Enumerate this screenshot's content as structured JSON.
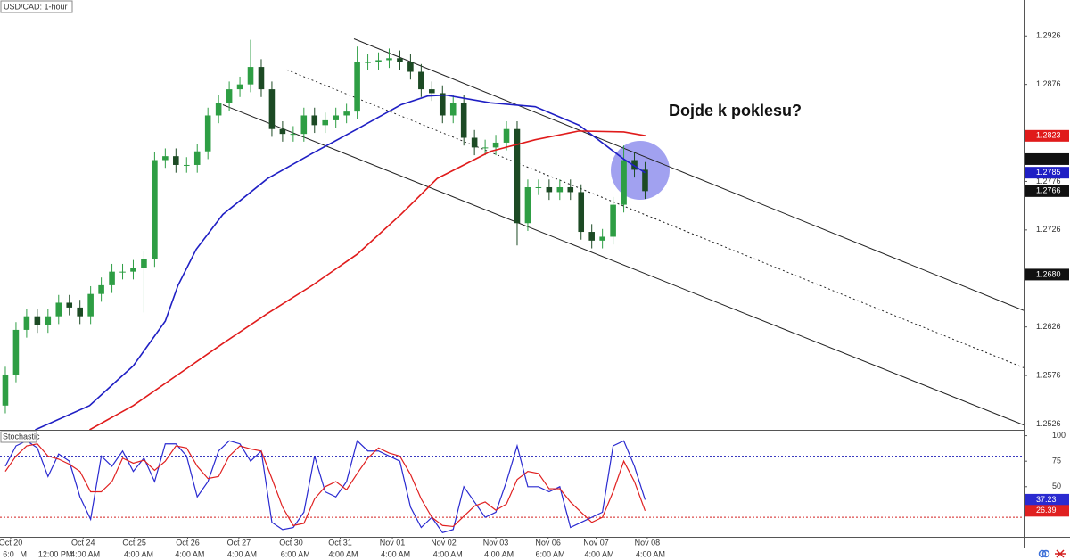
{
  "chart_data": [
    {
      "type": "candlestick",
      "title": "USD/CAD: 1-hour",
      "annotation": "Dojde k poklesu?",
      "up_color": "#2e9e44",
      "down_color": "#1c4a24",
      "xlim": [
        -0.5,
        95.5
      ],
      "ylim": [
        1.252,
        1.2963
      ],
      "yticks": [
        1.2526,
        1.2576,
        1.2626,
        1.2726,
        1.2776,
        1.2876,
        1.2926
      ],
      "xticks": [
        {
          "value": 0.5,
          "label": "Oct 20"
        },
        {
          "value": 7.3,
          "label": "Oct 24"
        },
        {
          "value": 12.1,
          "label": "Oct 25"
        },
        {
          "value": 17.1,
          "label": "Oct 26"
        },
        {
          "value": 21.9,
          "label": "Oct 27"
        },
        {
          "value": 26.8,
          "label": "Oct 30"
        },
        {
          "value": 31.4,
          "label": "Oct 31"
        },
        {
          "value": 36.3,
          "label": "Nov 01"
        },
        {
          "value": 41.1,
          "label": "Nov 02"
        },
        {
          "value": 46,
          "label": "Nov 03"
        },
        {
          "value": 50.9,
          "label": "Nov 06"
        },
        {
          "value": 55.4,
          "label": "Nov 07"
        },
        {
          "value": 60.2,
          "label": "Nov 08"
        }
      ],
      "xticks_time": [
        {
          "value": 0.3,
          "label": "6:0"
        },
        {
          "value": 1.7,
          "label": "M"
        },
        {
          "value": 4.7,
          "label": "12:00 PM"
        },
        {
          "value": 7.5,
          "label": "4:00 AM"
        },
        {
          "value": 12.5,
          "label": "4:00 AM"
        },
        {
          "value": 17.3,
          "label": "4:00 AM"
        },
        {
          "value": 22.2,
          "label": "4:00 AM"
        },
        {
          "value": 27.2,
          "label": "6:00 AM"
        },
        {
          "value": 31.7,
          "label": "4:00 AM"
        },
        {
          "value": 36.6,
          "label": "4:00 AM"
        },
        {
          "value": 41.5,
          "label": "4:00 AM"
        },
        {
          "value": 46.3,
          "label": "4:00 AM"
        },
        {
          "value": 51.1,
          "label": "6:00 AM"
        },
        {
          "value": 55.7,
          "label": "4:00 AM"
        },
        {
          "value": 60.5,
          "label": "4:00 AM"
        }
      ],
      "x": [
        0,
        1,
        2,
        3,
        4,
        5,
        6,
        7,
        8,
        9,
        10,
        11,
        12,
        13,
        14,
        15,
        16,
        17,
        18,
        19,
        20,
        21,
        22,
        23,
        24,
        25,
        26,
        27,
        28,
        29,
        30,
        31,
        32,
        33,
        34,
        35,
        36,
        37,
        38,
        39,
        40,
        41,
        42,
        43,
        44,
        45,
        46,
        47,
        48,
        49,
        50,
        51,
        52,
        53,
        54,
        55,
        56,
        57,
        58,
        59,
        60
      ],
      "open": [
        1.2545,
        1.2577,
        1.2623,
        1.2637,
        1.2628,
        1.2637,
        1.2651,
        1.2646,
        1.2637,
        1.266,
        1.2669,
        1.2683,
        1.2683,
        1.2687,
        1.2696,
        1.2798,
        1.2802,
        1.2793,
        1.2793,
        1.2807,
        1.2844,
        1.2857,
        1.2871,
        1.2876,
        1.2894,
        1.2871,
        1.283,
        1.2825,
        1.2825,
        1.2844,
        1.2834,
        1.2839,
        1.2844,
        1.2848,
        1.2899,
        1.2899,
        1.2901,
        1.2903,
        1.2899,
        1.2889,
        1.2871,
        1.2867,
        1.2844,
        1.2857,
        1.2821,
        1.2811,
        1.2811,
        1.2816,
        1.283,
        1.2733,
        1.277,
        1.277,
        1.2765,
        1.277,
        1.2765,
        1.2724,
        1.2715,
        1.2719,
        1.2752,
        1.2798,
        1.2788
      ],
      "high": [
        1.2585,
        1.2631,
        1.2645,
        1.2645,
        1.2645,
        1.2659,
        1.2659,
        1.2654,
        1.2668,
        1.2677,
        1.2691,
        1.2691,
        1.2695,
        1.2704,
        1.2806,
        1.281,
        1.281,
        1.2801,
        1.2815,
        1.2852,
        1.2865,
        1.2879,
        1.2884,
        1.2922,
        1.2902,
        1.2879,
        1.2838,
        1.2833,
        1.2852,
        1.2852,
        1.2847,
        1.2852,
        1.2856,
        1.2915,
        1.2907,
        1.2909,
        1.2913,
        1.2911,
        1.2907,
        1.2897,
        1.2879,
        1.2875,
        1.2865,
        1.2865,
        1.2829,
        1.2819,
        1.2824,
        1.2838,
        1.2838,
        1.2778,
        1.2778,
        1.2778,
        1.2778,
        1.2778,
        1.2773,
        1.2732,
        1.2727,
        1.276,
        1.2813,
        1.2806,
        1.2796
      ],
      "low": [
        1.2537,
        1.2569,
        1.2615,
        1.262,
        1.262,
        1.2629,
        1.2638,
        1.2629,
        1.2629,
        1.2652,
        1.2661,
        1.2675,
        1.2675,
        1.2641,
        1.2688,
        1.279,
        1.2785,
        1.2785,
        1.2785,
        1.2799,
        1.2836,
        1.2849,
        1.2863,
        1.2868,
        1.2863,
        1.2822,
        1.2817,
        1.2817,
        1.2817,
        1.2826,
        1.2826,
        1.2831,
        1.2836,
        1.284,
        1.2891,
        1.2891,
        1.2893,
        1.2891,
        1.2881,
        1.2863,
        1.2859,
        1.2836,
        1.2836,
        1.2813,
        1.2803,
        1.2803,
        1.2803,
        1.2808,
        1.271,
        1.2725,
        1.2762,
        1.2757,
        1.2757,
        1.2757,
        1.2716,
        1.2707,
        1.2707,
        1.2711,
        1.2744,
        1.278,
        1.2758
      ],
      "close": [
        1.2577,
        1.2623,
        1.2637,
        1.2628,
        1.2637,
        1.2651,
        1.2646,
        1.2637,
        1.266,
        1.2669,
        1.2683,
        1.2683,
        1.2687,
        1.2696,
        1.2798,
        1.2802,
        1.2793,
        1.2793,
        1.2807,
        1.2844,
        1.2857,
        1.2871,
        1.2876,
        1.2894,
        1.2871,
        1.283,
        1.2825,
        1.2825,
        1.2844,
        1.2834,
        1.2839,
        1.2844,
        1.2848,
        1.2899,
        1.2899,
        1.2901,
        1.2903,
        1.2899,
        1.2889,
        1.2871,
        1.2867,
        1.2844,
        1.2857,
        1.2821,
        1.2811,
        1.2811,
        1.2816,
        1.283,
        1.2733,
        1.277,
        1.277,
        1.2765,
        1.277,
        1.2765,
        1.2724,
        1.2715,
        1.2719,
        1.2752,
        1.2798,
        1.2788,
        1.2766
      ],
      "lines": [
        {
          "color": "#1f1fc4",
          "x": [
            2.8,
            7.9,
            12,
            15,
            16.2,
            17.9,
            20.4,
            24.6,
            28.8,
            33,
            37.1,
            39.6,
            41.3,
            45.5,
            49.7,
            53.8,
            58,
            60
          ],
          "values": [
            1.252,
            1.2545,
            1.2586,
            1.2632,
            1.2669,
            1.2706,
            1.2742,
            1.2779,
            1.2805,
            1.283,
            1.2855,
            1.2864,
            1.2865,
            1.2857,
            1.2853,
            1.2834,
            1.2799,
            1.2785
          ]
        },
        {
          "color": "#e01b1b",
          "x": [
            7.9,
            12,
            16.2,
            20.4,
            24.6,
            28.8,
            33,
            37.1,
            40.5,
            45.5,
            49.7,
            53.8,
            58,
            60.1
          ],
          "values": [
            1.252,
            1.2545,
            1.2577,
            1.2609,
            1.264,
            1.2669,
            1.2701,
            1.2742,
            1.2779,
            1.2807,
            1.2819,
            1.2828,
            1.2827,
            1.2823
          ]
        }
      ],
      "trendlines": [
        {
          "color": "#222222",
          "dashed": false,
          "x": [
            32.7,
            95.5
          ],
          "values": [
            1.2923,
            1.2643
          ]
        },
        {
          "color": "#222222",
          "dashed": true,
          "x": [
            26.4,
            95.5
          ],
          "values": [
            1.2891,
            1.2584
          ]
        },
        {
          "color": "#222222",
          "dashed": false,
          "x": [
            20.4,
            95.5
          ],
          "values": [
            1.2855,
            1.2525
          ]
        }
      ],
      "price_tags": [
        {
          "value": 1.2799,
          "color": "#111111"
        },
        {
          "value": 1.268,
          "label": "1.2680",
          "color": "#111111"
        }
      ]
    },
    {
      "type": "stochastic",
      "title": "Stochastic",
      "ylim": [
        0,
        104
      ],
      "yticks": [
        50,
        75,
        100
      ],
      "levels": [
        {
          "value": 80,
          "color": "#3b3bc0"
        },
        {
          "value": 20,
          "color": "#d42020"
        }
      ],
      "series": [
        {
          "color": "#2a2ad0",
          "values": [
            70,
            90,
            95,
            88,
            60,
            82,
            75,
            40,
            18,
            80,
            70,
            85,
            65,
            78,
            55,
            92,
            92,
            80,
            40,
            55,
            85,
            95,
            92,
            75,
            85,
            15,
            8,
            10,
            25,
            80,
            45,
            40,
            55,
            95,
            85,
            85,
            80,
            75,
            30,
            10,
            20,
            5,
            8,
            50,
            35,
            20,
            25,
            55,
            90,
            50,
            50,
            45,
            50,
            10,
            15,
            20,
            25,
            90,
            95,
            70,
            37.23
          ]
        },
        {
          "color": "#e02020",
          "values": [
            65,
            80,
            90,
            92,
            80,
            77,
            72,
            65,
            45,
            45,
            55,
            78,
            73,
            76,
            66,
            75,
            90,
            88,
            70,
            58,
            60,
            80,
            90,
            87,
            85,
            58,
            30,
            12,
            14,
            38,
            50,
            55,
            47,
            63,
            78,
            88,
            83,
            80,
            62,
            38,
            20,
            12,
            11,
            21,
            31,
            35,
            27,
            33,
            57,
            65,
            63,
            48,
            48,
            35,
            25,
            15,
            20,
            45,
            75,
            55,
            26.39
          ]
        }
      ]
    }
  ]
}
